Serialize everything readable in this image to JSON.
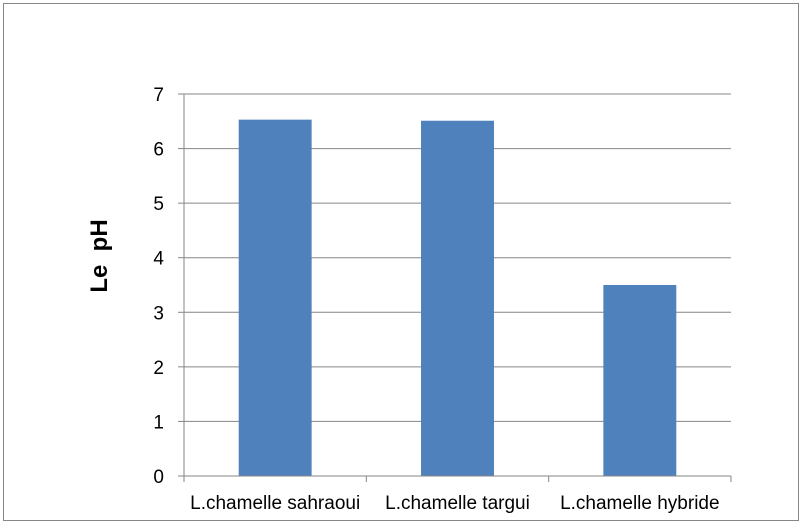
{
  "chart_data": {
    "type": "bar",
    "title": "",
    "xlabel": "",
    "ylabel": "Le  pH",
    "categories": [
      "L.chamelle sahraoui",
      "L.chamelle targui",
      "L.chamelle hybride"
    ],
    "values": [
      6.53,
      6.51,
      3.5
    ],
    "ylim": [
      0,
      7
    ],
    "yticks": [
      "0",
      "1",
      "2",
      "3",
      "4",
      "5",
      "6",
      "7"
    ],
    "grid": true,
    "legend": "none",
    "bar_color": "#4f81bd",
    "grid_color": "#868686"
  }
}
